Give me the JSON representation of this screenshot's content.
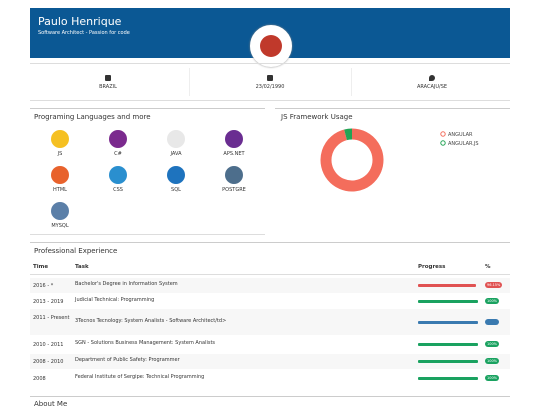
{
  "header": {
    "name": "Paulo Henrique",
    "subtitle": "Software Architect - Passion for code"
  },
  "info": [
    "BRAZIL",
    "23/02/1990",
    "ARACAJU/SE"
  ],
  "skills": {
    "title": "Programing Languages and more",
    "items": [
      {
        "label": "JS",
        "color": "#f5c022"
      },
      {
        "label": "C#",
        "color": "#7b2a8e"
      },
      {
        "label": "JAVA",
        "color": "#e8e8e8"
      },
      {
        "label": "APS.NET",
        "color": "#6a2d91"
      },
      {
        "label": "HTML",
        "color": "#e8622c"
      },
      {
        "label": "CSS",
        "color": "#2a8fcf"
      },
      {
        "label": "SQL",
        "color": "#1e73be"
      },
      {
        "label": "POSTGRE",
        "color": "#4d6e8c"
      },
      {
        "label": "MYSQL",
        "color": "#5b7fa8"
      }
    ]
  },
  "chart_data": {
    "type": "pie",
    "title": "JS Framework Usage",
    "categories": [
      "ANGULAR",
      "ANGULAR.JS"
    ],
    "values": [
      96,
      4
    ],
    "colors": [
      "#f46d5c",
      "#23a455"
    ]
  },
  "experience": {
    "title": "Professional Experience",
    "columns": [
      "Time",
      "Task",
      "Progress",
      "%"
    ],
    "rows": [
      {
        "time": "2016 - *",
        "task": "Bachelor's Degree in Information System",
        "progress": 96.15,
        "color": "#e05252",
        "label": "96.15%"
      },
      {
        "time": "2013 - 2019",
        "task": "Judicial Technical: Programming",
        "progress": 100,
        "color": "#1aa260",
        "label": "100%"
      },
      {
        "time": "2011 - Present",
        "task": "3Tecnos Tecnology: System Analists - Software Architect/td>",
        "progress": 100,
        "color": "#3a7ab0"
      },
      {
        "time": "2010 - 2011",
        "task": "SGN - Solutions Business Management: System Analists",
        "progress": 100,
        "color": "#1aa260",
        "label": "100%"
      },
      {
        "time": "2008 - 2010",
        "task": "Department of Public Safety: Programmer",
        "progress": 100,
        "color": "#1aa260",
        "label": "100%"
      },
      {
        "time": "2008",
        "task": "Federal Institute of Sergipe: Technical Programming",
        "progress": 100,
        "color": "#1aa260",
        "label": "100%"
      }
    ]
  },
  "about": {
    "title": "About Me"
  }
}
